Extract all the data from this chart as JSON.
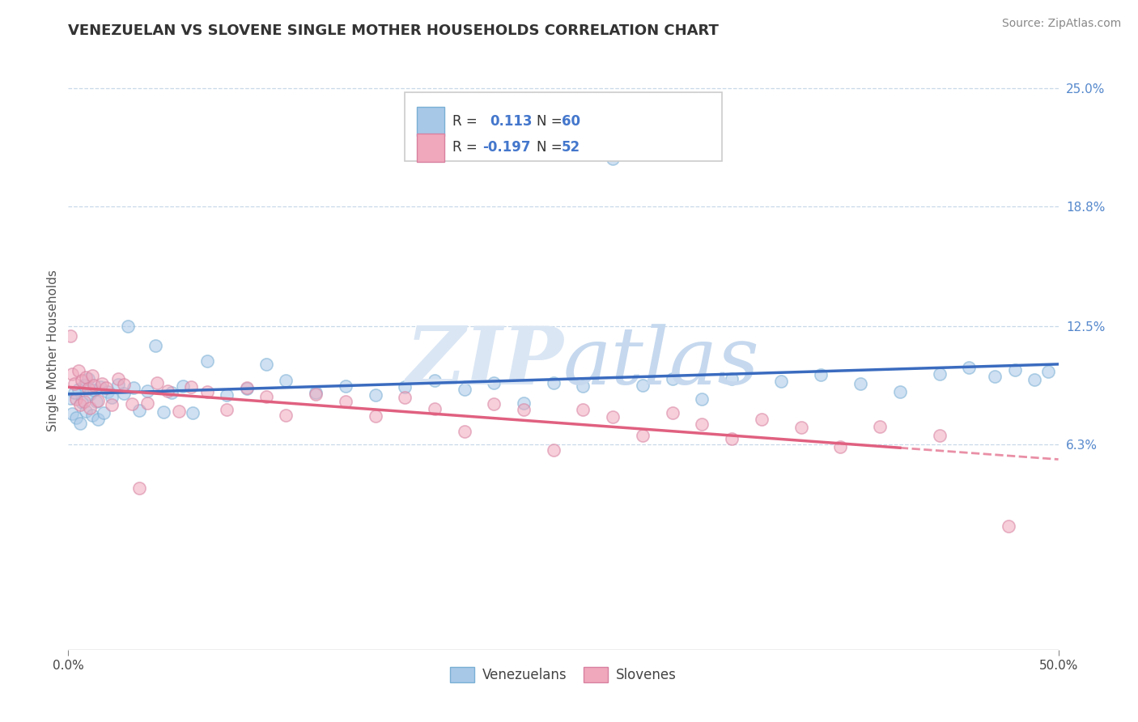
{
  "title": "VENEZUELAN VS SLOVENE SINGLE MOTHER HOUSEHOLDS CORRELATION CHART",
  "source": "Source: ZipAtlas.com",
  "ylabel": "Single Mother Households",
  "ytick_vals": [
    0.063,
    0.125,
    0.188,
    0.25
  ],
  "ytick_labels": [
    "6.3%",
    "12.5%",
    "18.8%",
    "25.0%"
  ],
  "xlim": [
    0.0,
    0.5
  ],
  "ylim": [
    -0.045,
    0.27
  ],
  "venezuelan_color": "#a8c8e8",
  "venezuelan_edge": "#7aafd4",
  "slovene_color": "#f0a8bc",
  "slovene_edge": "#d880a0",
  "venezuelan_line_color": "#3a6bbf",
  "slovene_line_color": "#e06080",
  "slovene_line_dash": "--",
  "watermark_zip_color": "#dce8f5",
  "watermark_atlas_color": "#c8d8ee",
  "legend_R_ven": "0.113",
  "legend_N_ven": "60",
  "legend_R_slo": "-0.197",
  "legend_N_slo": "52",
  "grid_color": "#c8d8e8",
  "title_fontsize": 13,
  "tick_fontsize": 11,
  "source_fontsize": 10
}
